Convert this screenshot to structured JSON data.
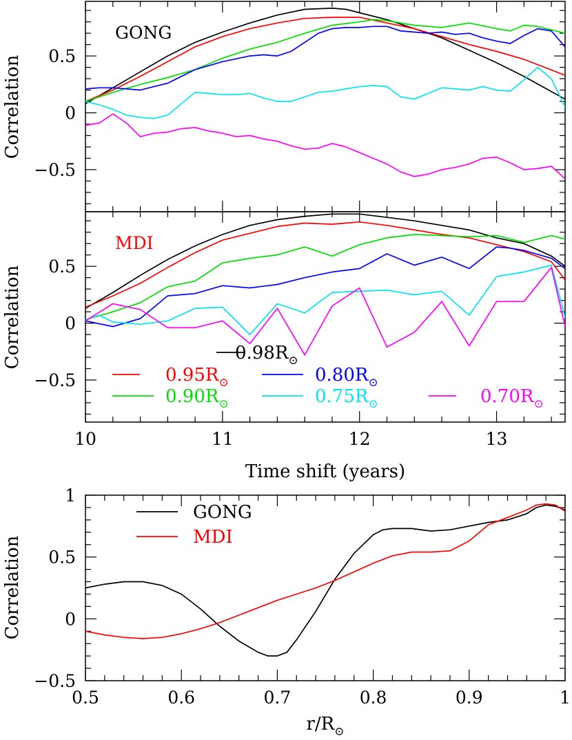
{
  "chart_data": [
    {
      "type": "line",
      "panel_label": "GONG",
      "ylabel": "Correlation",
      "xlim": [
        10,
        13.5
      ],
      "ylim": [
        -0.87,
        0.98
      ],
      "yticks": [
        0.5,
        0,
        -0.5
      ],
      "ytick_labels": [
        "0.5",
        "0",
        "−0.5"
      ],
      "grid": false,
      "series": [
        {
          "name": "0.98R",
          "color": "#000000",
          "x": [
            10.0,
            10.2,
            10.4,
            10.6,
            10.8,
            11.0,
            11.2,
            11.4,
            11.6,
            11.8,
            11.9,
            12.0,
            12.2,
            12.4,
            12.6,
            12.8,
            13.0,
            13.2,
            13.5
          ],
          "y": [
            0.08,
            0.22,
            0.36,
            0.5,
            0.62,
            0.71,
            0.79,
            0.86,
            0.91,
            0.92,
            0.91,
            0.88,
            0.82,
            0.74,
            0.66,
            0.55,
            0.44,
            0.32,
            0.12
          ]
        },
        {
          "name": "0.95R",
          "color": "#ff0000",
          "x": [
            10.0,
            10.2,
            10.4,
            10.6,
            10.8,
            11.0,
            11.2,
            11.4,
            11.6,
            11.8,
            12.0,
            12.2,
            12.4,
            12.6,
            12.8,
            13.0,
            13.2,
            13.5
          ],
          "y": [
            0.1,
            0.2,
            0.32,
            0.45,
            0.58,
            0.67,
            0.74,
            0.79,
            0.83,
            0.84,
            0.84,
            0.79,
            0.74,
            0.67,
            0.6,
            0.54,
            0.47,
            0.33
          ]
        },
        {
          "name": "0.90R",
          "color": "#00dd00",
          "x": [
            10.0,
            10.2,
            10.4,
            10.6,
            10.8,
            11.0,
            11.2,
            11.4,
            11.6,
            11.8,
            12.0,
            12.1,
            12.2,
            12.4,
            12.6,
            12.8,
            13.0,
            13.1,
            13.2,
            13.3,
            13.5
          ],
          "y": [
            0.1,
            0.18,
            0.25,
            0.31,
            0.38,
            0.48,
            0.56,
            0.62,
            0.7,
            0.77,
            0.8,
            0.82,
            0.81,
            0.77,
            0.75,
            0.79,
            0.74,
            0.72,
            0.77,
            0.76,
            0.7
          ]
        },
        {
          "name": "0.80R",
          "color": "#0000ff",
          "x": [
            10.0,
            10.1,
            10.2,
            10.3,
            10.4,
            10.5,
            10.6,
            10.8,
            11.0,
            11.2,
            11.3,
            11.4,
            11.5,
            11.6,
            11.7,
            11.8,
            11.9,
            12.0,
            12.1,
            12.2,
            12.3,
            12.4,
            12.5,
            12.6,
            12.7,
            12.8,
            12.9,
            13.0,
            13.1,
            13.2,
            13.3,
            13.4,
            13.5
          ],
          "y": [
            0.21,
            0.22,
            0.22,
            0.21,
            0.2,
            0.23,
            0.26,
            0.38,
            0.45,
            0.5,
            0.51,
            0.5,
            0.54,
            0.62,
            0.7,
            0.74,
            0.75,
            0.75,
            0.76,
            0.76,
            0.72,
            0.71,
            0.7,
            0.71,
            0.69,
            0.7,
            0.66,
            0.63,
            0.61,
            0.68,
            0.74,
            0.72,
            0.58
          ]
        },
        {
          "name": "0.75R",
          "color": "#00e5ee",
          "x": [
            10.0,
            10.1,
            10.2,
            10.3,
            10.4,
            10.5,
            10.6,
            10.7,
            10.8,
            10.9,
            11.0,
            11.1,
            11.2,
            11.3,
            11.4,
            11.5,
            11.6,
            11.7,
            11.8,
            11.9,
            12.0,
            12.1,
            12.2,
            12.3,
            12.4,
            12.5,
            12.6,
            12.7,
            12.8,
            12.9,
            13.0,
            13.1,
            13.2,
            13.3,
            13.4,
            13.5
          ],
          "y": [
            0.1,
            0.07,
            0.03,
            -0.02,
            -0.04,
            -0.05,
            -0.02,
            0.08,
            0.18,
            0.17,
            0.16,
            0.16,
            0.17,
            0.13,
            0.1,
            0.1,
            0.14,
            0.18,
            0.19,
            0.21,
            0.23,
            0.24,
            0.23,
            0.14,
            0.12,
            0.17,
            0.22,
            0.21,
            0.2,
            0.23,
            0.2,
            0.19,
            0.29,
            0.4,
            0.3,
            0.05
          ]
        },
        {
          "name": "0.70R",
          "color": "#ff00ff",
          "x": [
            10.0,
            10.1,
            10.2,
            10.3,
            10.4,
            10.5,
            10.6,
            10.7,
            10.8,
            10.9,
            11.0,
            11.1,
            11.2,
            11.3,
            11.4,
            11.5,
            11.6,
            11.7,
            11.8,
            11.9,
            12.0,
            12.1,
            12.2,
            12.3,
            12.4,
            12.5,
            12.6,
            12.7,
            12.8,
            12.9,
            13.0,
            13.1,
            13.2,
            13.3,
            13.4,
            13.5
          ],
          "y": [
            -0.11,
            -0.09,
            -0.01,
            -0.09,
            -0.21,
            -0.18,
            -0.17,
            -0.14,
            -0.13,
            -0.16,
            -0.18,
            -0.21,
            -0.2,
            -0.23,
            -0.25,
            -0.29,
            -0.32,
            -0.31,
            -0.27,
            -0.3,
            -0.35,
            -0.4,
            -0.45,
            -0.52,
            -0.56,
            -0.54,
            -0.5,
            -0.48,
            -0.45,
            -0.4,
            -0.39,
            -0.44,
            -0.5,
            -0.49,
            -0.47,
            -0.58
          ]
        }
      ]
    },
    {
      "type": "line",
      "panel_label": "MDI",
      "ylabel": "Correlation",
      "xlabel": "Time shift (years)",
      "xlim": [
        10,
        13.5
      ],
      "ylim": [
        -0.87,
        0.98
      ],
      "xticks": [
        10,
        11,
        12,
        13
      ],
      "xtick_labels": [
        "10",
        "11",
        "12",
        "13"
      ],
      "yticks": [
        0.5,
        0,
        -0.5
      ],
      "ytick_labels": [
        "0.5",
        "0",
        "−0.5"
      ],
      "legend": {
        "placement": "bottom",
        "suffix": "⊙",
        "entries": [
          "0.98R",
          "0.95R",
          "0.80R",
          "0.90R",
          "0.75R",
          "0.70R"
        ]
      },
      "grid": false,
      "series": [
        {
          "name": "0.98R",
          "color": "#000000",
          "x": [
            10.0,
            10.2,
            10.4,
            10.6,
            10.8,
            11.0,
            11.2,
            11.4,
            11.6,
            11.8,
            12.0,
            12.2,
            12.4,
            12.6,
            12.8,
            13.0,
            13.2,
            13.4,
            13.5
          ],
          "y": [
            0.13,
            0.27,
            0.42,
            0.56,
            0.68,
            0.78,
            0.86,
            0.91,
            0.94,
            0.96,
            0.96,
            0.93,
            0.9,
            0.86,
            0.82,
            0.75,
            0.7,
            0.59,
            0.5
          ]
        },
        {
          "name": "0.95R",
          "color": "#ff0000",
          "x": [
            10.0,
            10.2,
            10.4,
            10.6,
            10.8,
            11.0,
            11.2,
            11.4,
            11.6,
            11.8,
            12.0,
            12.2,
            12.4,
            12.6,
            12.8,
            13.0,
            13.2,
            13.4,
            13.5
          ],
          "y": [
            0.14,
            0.24,
            0.35,
            0.49,
            0.62,
            0.73,
            0.79,
            0.85,
            0.88,
            0.87,
            0.89,
            0.86,
            0.82,
            0.78,
            0.75,
            0.69,
            0.63,
            0.54,
            0.38
          ]
        },
        {
          "name": "0.90R",
          "color": "#00dd00",
          "x": [
            10.0,
            10.2,
            10.4,
            10.6,
            10.8,
            11.0,
            11.2,
            11.4,
            11.6,
            11.7,
            11.8,
            12.0,
            12.2,
            12.4,
            12.6,
            12.8,
            13.0,
            13.2,
            13.4,
            13.5
          ],
          "y": [
            0.03,
            0.1,
            0.18,
            0.32,
            0.37,
            0.53,
            0.57,
            0.6,
            0.67,
            0.63,
            0.59,
            0.69,
            0.75,
            0.78,
            0.77,
            0.76,
            0.77,
            0.71,
            0.77,
            0.74
          ]
        },
        {
          "name": "0.80R",
          "color": "#0000ff",
          "x": [
            10.0,
            10.2,
            10.4,
            10.6,
            10.8,
            11.0,
            11.2,
            11.4,
            11.6,
            11.8,
            12.0,
            12.2,
            12.4,
            12.6,
            12.8,
            13.0,
            13.1,
            13.2,
            13.4,
            13.5
          ],
          "y": [
            0.02,
            -0.03,
            0.04,
            0.24,
            0.26,
            0.33,
            0.31,
            0.34,
            0.4,
            0.45,
            0.48,
            0.61,
            0.51,
            0.58,
            0.48,
            0.67,
            0.66,
            0.64,
            0.57,
            0.48
          ]
        },
        {
          "name": "0.75R",
          "color": "#00e5ee",
          "x": [
            10.0,
            10.1,
            10.2,
            10.4,
            10.6,
            10.8,
            11.0,
            11.2,
            11.4,
            11.6,
            11.8,
            12.0,
            12.2,
            12.4,
            12.6,
            12.8,
            13.0,
            13.2,
            13.4,
            13.5
          ],
          "y": [
            0.03,
            0.07,
            0.01,
            -0.01,
            0.02,
            0.13,
            0.14,
            -0.1,
            0.17,
            0.09,
            0.27,
            0.28,
            0.29,
            0.25,
            0.28,
            0.07,
            0.41,
            0.45,
            0.51,
            0.05
          ]
        },
        {
          "name": "0.70R",
          "color": "#ff00ff",
          "x": [
            10.0,
            10.2,
            10.4,
            10.6,
            10.8,
            11.0,
            11.2,
            11.4,
            11.6,
            11.8,
            12.0,
            12.2,
            12.4,
            12.6,
            12.8,
            13.0,
            13.2,
            13.4,
            13.5
          ],
          "y": [
            0.02,
            0.17,
            0.12,
            -0.04,
            -0.04,
            0.02,
            -0.18,
            0.13,
            -0.28,
            0.15,
            0.31,
            -0.21,
            -0.08,
            0.19,
            -0.2,
            0.19,
            0.19,
            0.49,
            -0.03
          ]
        }
      ]
    },
    {
      "type": "line",
      "ylabel": "Correlation",
      "xlabel": "r/R",
      "xlabel_suffix": "⊙",
      "xlim": [
        0.5,
        1.0
      ],
      "ylim": [
        -0.5,
        1.0
      ],
      "xticks": [
        0.5,
        0.6,
        0.7,
        0.8,
        0.9,
        1.0
      ],
      "xtick_labels": [
        "0.5",
        "0.6",
        "0.7",
        "0.8",
        "0.9",
        "1"
      ],
      "yticks": [
        1,
        0.5,
        0,
        -0.5
      ],
      "ytick_labels": [
        "1",
        "0.5",
        "0",
        "−0.5"
      ],
      "legend": {
        "placement": "top-left",
        "entries": [
          "GONG",
          "MDI"
        ]
      },
      "grid": false,
      "series": [
        {
          "name": "GONG",
          "color": "#000000",
          "x": [
            0.5,
            0.52,
            0.54,
            0.56,
            0.58,
            0.6,
            0.62,
            0.64,
            0.66,
            0.68,
            0.69,
            0.7,
            0.71,
            0.72,
            0.74,
            0.76,
            0.78,
            0.8,
            0.81,
            0.82,
            0.84,
            0.86,
            0.88,
            0.9,
            0.92,
            0.94,
            0.96,
            0.97,
            0.98,
            0.99,
            1.0
          ],
          "y": [
            0.25,
            0.28,
            0.3,
            0.3,
            0.27,
            0.2,
            0.08,
            -0.06,
            -0.18,
            -0.27,
            -0.3,
            -0.3,
            -0.27,
            -0.17,
            0.06,
            0.32,
            0.53,
            0.68,
            0.72,
            0.73,
            0.73,
            0.71,
            0.72,
            0.75,
            0.78,
            0.8,
            0.85,
            0.9,
            0.92,
            0.91,
            0.88
          ]
        },
        {
          "name": "MDI",
          "color": "#ff0000",
          "x": [
            0.5,
            0.52,
            0.54,
            0.56,
            0.58,
            0.6,
            0.62,
            0.64,
            0.66,
            0.68,
            0.7,
            0.72,
            0.74,
            0.76,
            0.78,
            0.8,
            0.82,
            0.84,
            0.86,
            0.88,
            0.9,
            0.92,
            0.94,
            0.96,
            0.97,
            0.98,
            0.99,
            1.0
          ],
          "y": [
            -0.1,
            -0.13,
            -0.15,
            -0.16,
            -0.15,
            -0.12,
            -0.08,
            -0.03,
            0.03,
            0.09,
            0.15,
            0.2,
            0.25,
            0.31,
            0.38,
            0.45,
            0.51,
            0.54,
            0.54,
            0.55,
            0.63,
            0.76,
            0.82,
            0.88,
            0.92,
            0.93,
            0.92,
            0.87
          ]
        }
      ]
    }
  ]
}
